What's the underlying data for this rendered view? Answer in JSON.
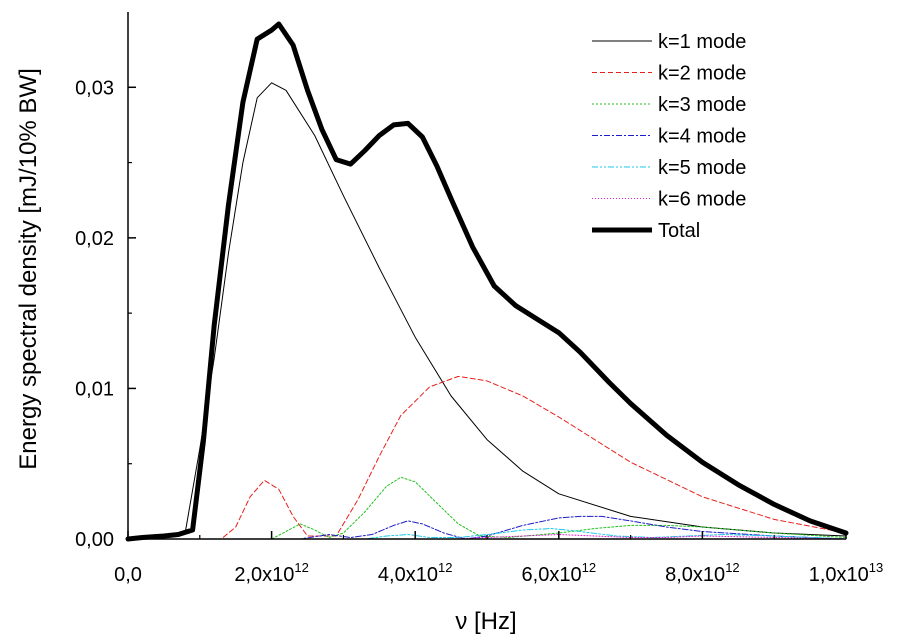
{
  "chart_data": {
    "type": "line",
    "xlabel": "ν [Hz]",
    "ylabel": "Energy spectral density [mJ/10% BW]",
    "xlim": [
      0,
      10000000000000.0
    ],
    "ylim": [
      0,
      0.035
    ],
    "x_ticks": [
      {
        "value": 0,
        "mantissa": "0,0",
        "exp": ""
      },
      {
        "value": 2000000000000.0,
        "mantissa": "2,0x10",
        "exp": "12"
      },
      {
        "value": 4000000000000.0,
        "mantissa": "4,0x10",
        "exp": "12"
      },
      {
        "value": 6000000000000.0,
        "mantissa": "6,0x10",
        "exp": "12"
      },
      {
        "value": 8000000000000.0,
        "mantissa": "8,0x10",
        "exp": "12"
      },
      {
        "value": 10000000000000.0,
        "mantissa": "1,0x10",
        "exp": "13"
      }
    ],
    "y_ticks": [
      {
        "value": 0,
        "label": "0,00"
      },
      {
        "value": 0.01,
        "label": "0,01"
      },
      {
        "value": 0.02,
        "label": "0,02"
      },
      {
        "value": 0.03,
        "label": "0,03"
      }
    ],
    "grid": false,
    "legend_position": "top-right",
    "series": [
      {
        "name": "k=1 mode",
        "color": "#000000",
        "dash": "",
        "width": 1,
        "x": [
          0.0,
          500000000000.0,
          800000000000.0,
          1000000000000.0,
          1200000000000.0,
          1400000000000.0,
          1600000000000.0,
          1800000000000.0,
          2000000000000.0,
          2200000000000.0,
          2600000000000.0,
          3000000000000.0,
          3500000000000.0,
          4000000000000.0,
          4500000000000.0,
          5000000000000.0,
          5500000000000.0,
          6000000000000.0,
          7000000000000.0,
          8000000000000.0,
          9000000000000.0,
          10000000000000.0
        ],
        "y": [
          0,
          0.0002,
          0.0005,
          0.006,
          0.012,
          0.019,
          0.025,
          0.0293,
          0.0303,
          0.0298,
          0.0268,
          0.0228,
          0.018,
          0.0134,
          0.0095,
          0.0066,
          0.0045,
          0.003,
          0.0015,
          0.0008,
          0.0004,
          0.0002
        ]
      },
      {
        "name": "k=2 mode",
        "color": "#e8201c",
        "dash": "5,3",
        "width": 1,
        "x": [
          0.0,
          1300000000000.0,
          1500000000000.0,
          1700000000000.0,
          1900000000000.0,
          2100000000000.0,
          2300000000000.0,
          2500000000000.0,
          2900000000000.0,
          3200000000000.0,
          3500000000000.0,
          3800000000000.0,
          4200000000000.0,
          4600000000000.0,
          5000000000000.0,
          5500000000000.0,
          6000000000000.0,
          6500000000000.0,
          7000000000000.0,
          8000000000000.0,
          9000000000000.0,
          10000000000000.0
        ],
        "y": [
          0,
          0,
          0.0008,
          0.0028,
          0.0039,
          0.0033,
          0.0015,
          0.0002,
          0.0002,
          0.0026,
          0.0055,
          0.0082,
          0.0101,
          0.0108,
          0.0105,
          0.0095,
          0.0081,
          0.0066,
          0.0051,
          0.0028,
          0.0013,
          0.0004
        ]
      },
      {
        "name": "k=3 mode",
        "color": "#22c01f",
        "dash": "2,2",
        "width": 1,
        "x": [
          0.0,
          2000000000000.0,
          2200000000000.0,
          2400000000000.0,
          2600000000000.0,
          2800000000000.0,
          3000000000000.0,
          3300000000000.0,
          3600000000000.0,
          3800000000000.0,
          4000000000000.0,
          4300000000000.0,
          4600000000000.0,
          4900000000000.0,
          5300000000000.0,
          6000000000000.0,
          6500000000000.0,
          7000000000000.0,
          7500000000000.0,
          8000000000000.0,
          9000000000000.0,
          10000000000000.0
        ],
        "y": [
          0,
          0,
          0.0005,
          0.001,
          0.0006,
          0.0001,
          0.0004,
          0.0018,
          0.0035,
          0.0041,
          0.0038,
          0.0024,
          0.001,
          0.0002,
          0.0001,
          0.0004,
          0.0007,
          0.0009,
          0.0009,
          0.0008,
          0.0004,
          0.0001
        ]
      },
      {
        "name": "k=4 mode",
        "color": "#1c1cc8",
        "dash": "6,2,2,2",
        "width": 1,
        "x": [
          0.0,
          2400000000000.0,
          2800000000000.0,
          3100000000000.0,
          3400000000000.0,
          3700000000000.0,
          3900000000000.0,
          4100000000000.0,
          4400000000000.0,
          4700000000000.0,
          5000000000000.0,
          5500000000000.0,
          6000000000000.0,
          6300000000000.0,
          6600000000000.0,
          7000000000000.0,
          7500000000000.0,
          8000000000000.0,
          9000000000000.0,
          10000000000000.0
        ],
        "y": [
          0,
          0,
          0.0003,
          0.0001,
          0.0003,
          0.0009,
          0.0012,
          0.001,
          0.0004,
          0,
          0.0002,
          0.0009,
          0.0014,
          0.0015,
          0.0015,
          0.0012,
          0.0008,
          0.0005,
          0.0002,
          0
        ]
      },
      {
        "name": "k=5 mode",
        "color": "#1ec8e6",
        "dash": "6,2,2,2,2,2",
        "width": 1,
        "x": [
          0.0,
          3300000000000.0,
          3600000000000.0,
          3900000000000.0,
          4200000000000.0,
          4600000000000.0,
          5000000000000.0,
          5500000000000.0,
          5900000000000.0,
          6300000000000.0,
          6800000000000.0,
          7300000000000.0,
          7800000000000.0,
          8300000000000.0,
          9000000000000.0,
          10000000000000.0
        ],
        "y": [
          0,
          0,
          0.0002,
          0.0003,
          0.0001,
          0.0001,
          0.0003,
          0.0006,
          0.0007,
          0.0005,
          0.0002,
          0.0001,
          0.0002,
          0.0003,
          0.0002,
          0
        ]
      },
      {
        "name": "k=6 mode",
        "color": "#e020d0",
        "dash": "1,2",
        "width": 1,
        "x": [
          0.0,
          4500000000000.0,
          5000000000000.0,
          5500000000000.0,
          6000000000000.0,
          6500000000000.0,
          7000000000000.0,
          7500000000000.0,
          8000000000000.0,
          9000000000000.0,
          10000000000000.0
        ],
        "y": [
          0,
          0,
          0.0001,
          0.0002,
          0.0003,
          0.0002,
          0.0001,
          0.0001,
          0.0002,
          0.0001,
          0
        ]
      },
      {
        "name": "Total",
        "color": "#000000",
        "dash": "",
        "width": 5,
        "x": [
          0.0,
          200000000000.0,
          500000000000.0,
          700000000000.0,
          900000000000.0,
          1050000000000.0,
          1200000000000.0,
          1400000000000.0,
          1600000000000.0,
          1800000000000.0,
          2000000000000.0,
          2100000000000.0,
          2300000000000.0,
          2500000000000.0,
          2700000000000.0,
          2900000000000.0,
          3100000000000.0,
          3300000000000.0,
          3500000000000.0,
          3700000000000.0,
          3900000000000.0,
          4100000000000.0,
          4300000000000.0,
          4500000000000.0,
          4800000000000.0,
          5100000000000.0,
          5400000000000.0,
          5700000000000.0,
          6000000000000.0,
          6300000000000.0,
          6700000000000.0,
          7000000000000.0,
          7500000000000.0,
          8000000000000.0,
          8500000000000.0,
          9000000000000.0,
          9500000000000.0,
          10000000000000.0
        ],
        "y": [
          0,
          0.0001,
          0.0002,
          0.0003,
          0.0006,
          0.0065,
          0.0142,
          0.0222,
          0.029,
          0.0332,
          0.0338,
          0.0342,
          0.0328,
          0.0298,
          0.0272,
          0.0252,
          0.0249,
          0.0258,
          0.0268,
          0.0275,
          0.0276,
          0.0267,
          0.0248,
          0.0226,
          0.0194,
          0.0168,
          0.0155,
          0.0146,
          0.0137,
          0.0124,
          0.0104,
          0.009,
          0.0069,
          0.0051,
          0.0036,
          0.0023,
          0.0012,
          0.0004
        ]
      }
    ]
  }
}
